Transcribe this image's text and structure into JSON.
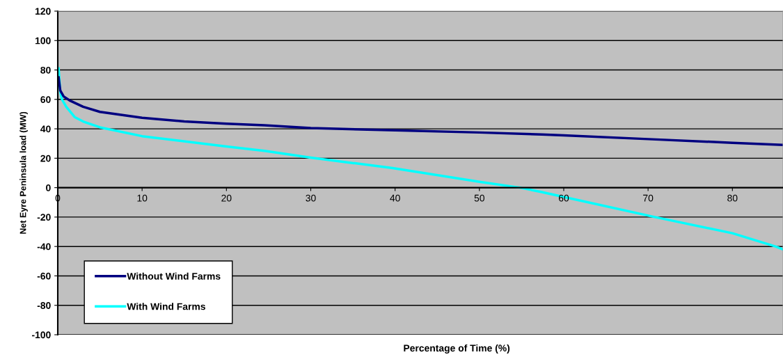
{
  "chart_data": {
    "type": "line",
    "xlabel": "Percentage of Time (%)",
    "ylabel": "Net Eyre Peninsula load (MW)",
    "xlim": [
      0,
      86
    ],
    "xticks": [
      0,
      10,
      20,
      30,
      40,
      50,
      60,
      70,
      80
    ],
    "ylim": [
      -100,
      120
    ],
    "yticks": [
      -100,
      -80,
      -60,
      -40,
      -20,
      0,
      20,
      40,
      60,
      80,
      100,
      120
    ],
    "grid": "y",
    "legend": "bottom left",
    "marker": "none",
    "line_style": "solid",
    "series": [
      {
        "name": "Without Wind Farms",
        "color": "#000080",
        "x": [
          0.1,
          0.3,
          0.7,
          1.5,
          3,
          5,
          10,
          15,
          20,
          24.5,
          30,
          40,
          50,
          57.4,
          60,
          70,
          80,
          86
        ],
        "values": [
          75,
          66,
          62,
          59,
          55,
          51.5,
          47.5,
          45,
          43.5,
          42.4,
          40.5,
          39,
          37.5,
          36.1,
          35.5,
          33,
          30.5,
          29
        ]
      },
      {
        "name": "With Wind Farms",
        "color": "#00ffff",
        "x": [
          0.1,
          0.3,
          0.5,
          1,
          2,
          3,
          5,
          10,
          20,
          24.5,
          30,
          39.7,
          50,
          54.8,
          57.4,
          60,
          70.8,
          80,
          85.1,
          86
        ],
        "values": [
          81,
          65,
          60,
          55,
          48,
          45,
          41,
          35,
          28,
          25,
          20.4,
          13.3,
          4,
          0,
          -3,
          -6.3,
          -20,
          -31,
          -40,
          -42
        ]
      }
    ]
  }
}
